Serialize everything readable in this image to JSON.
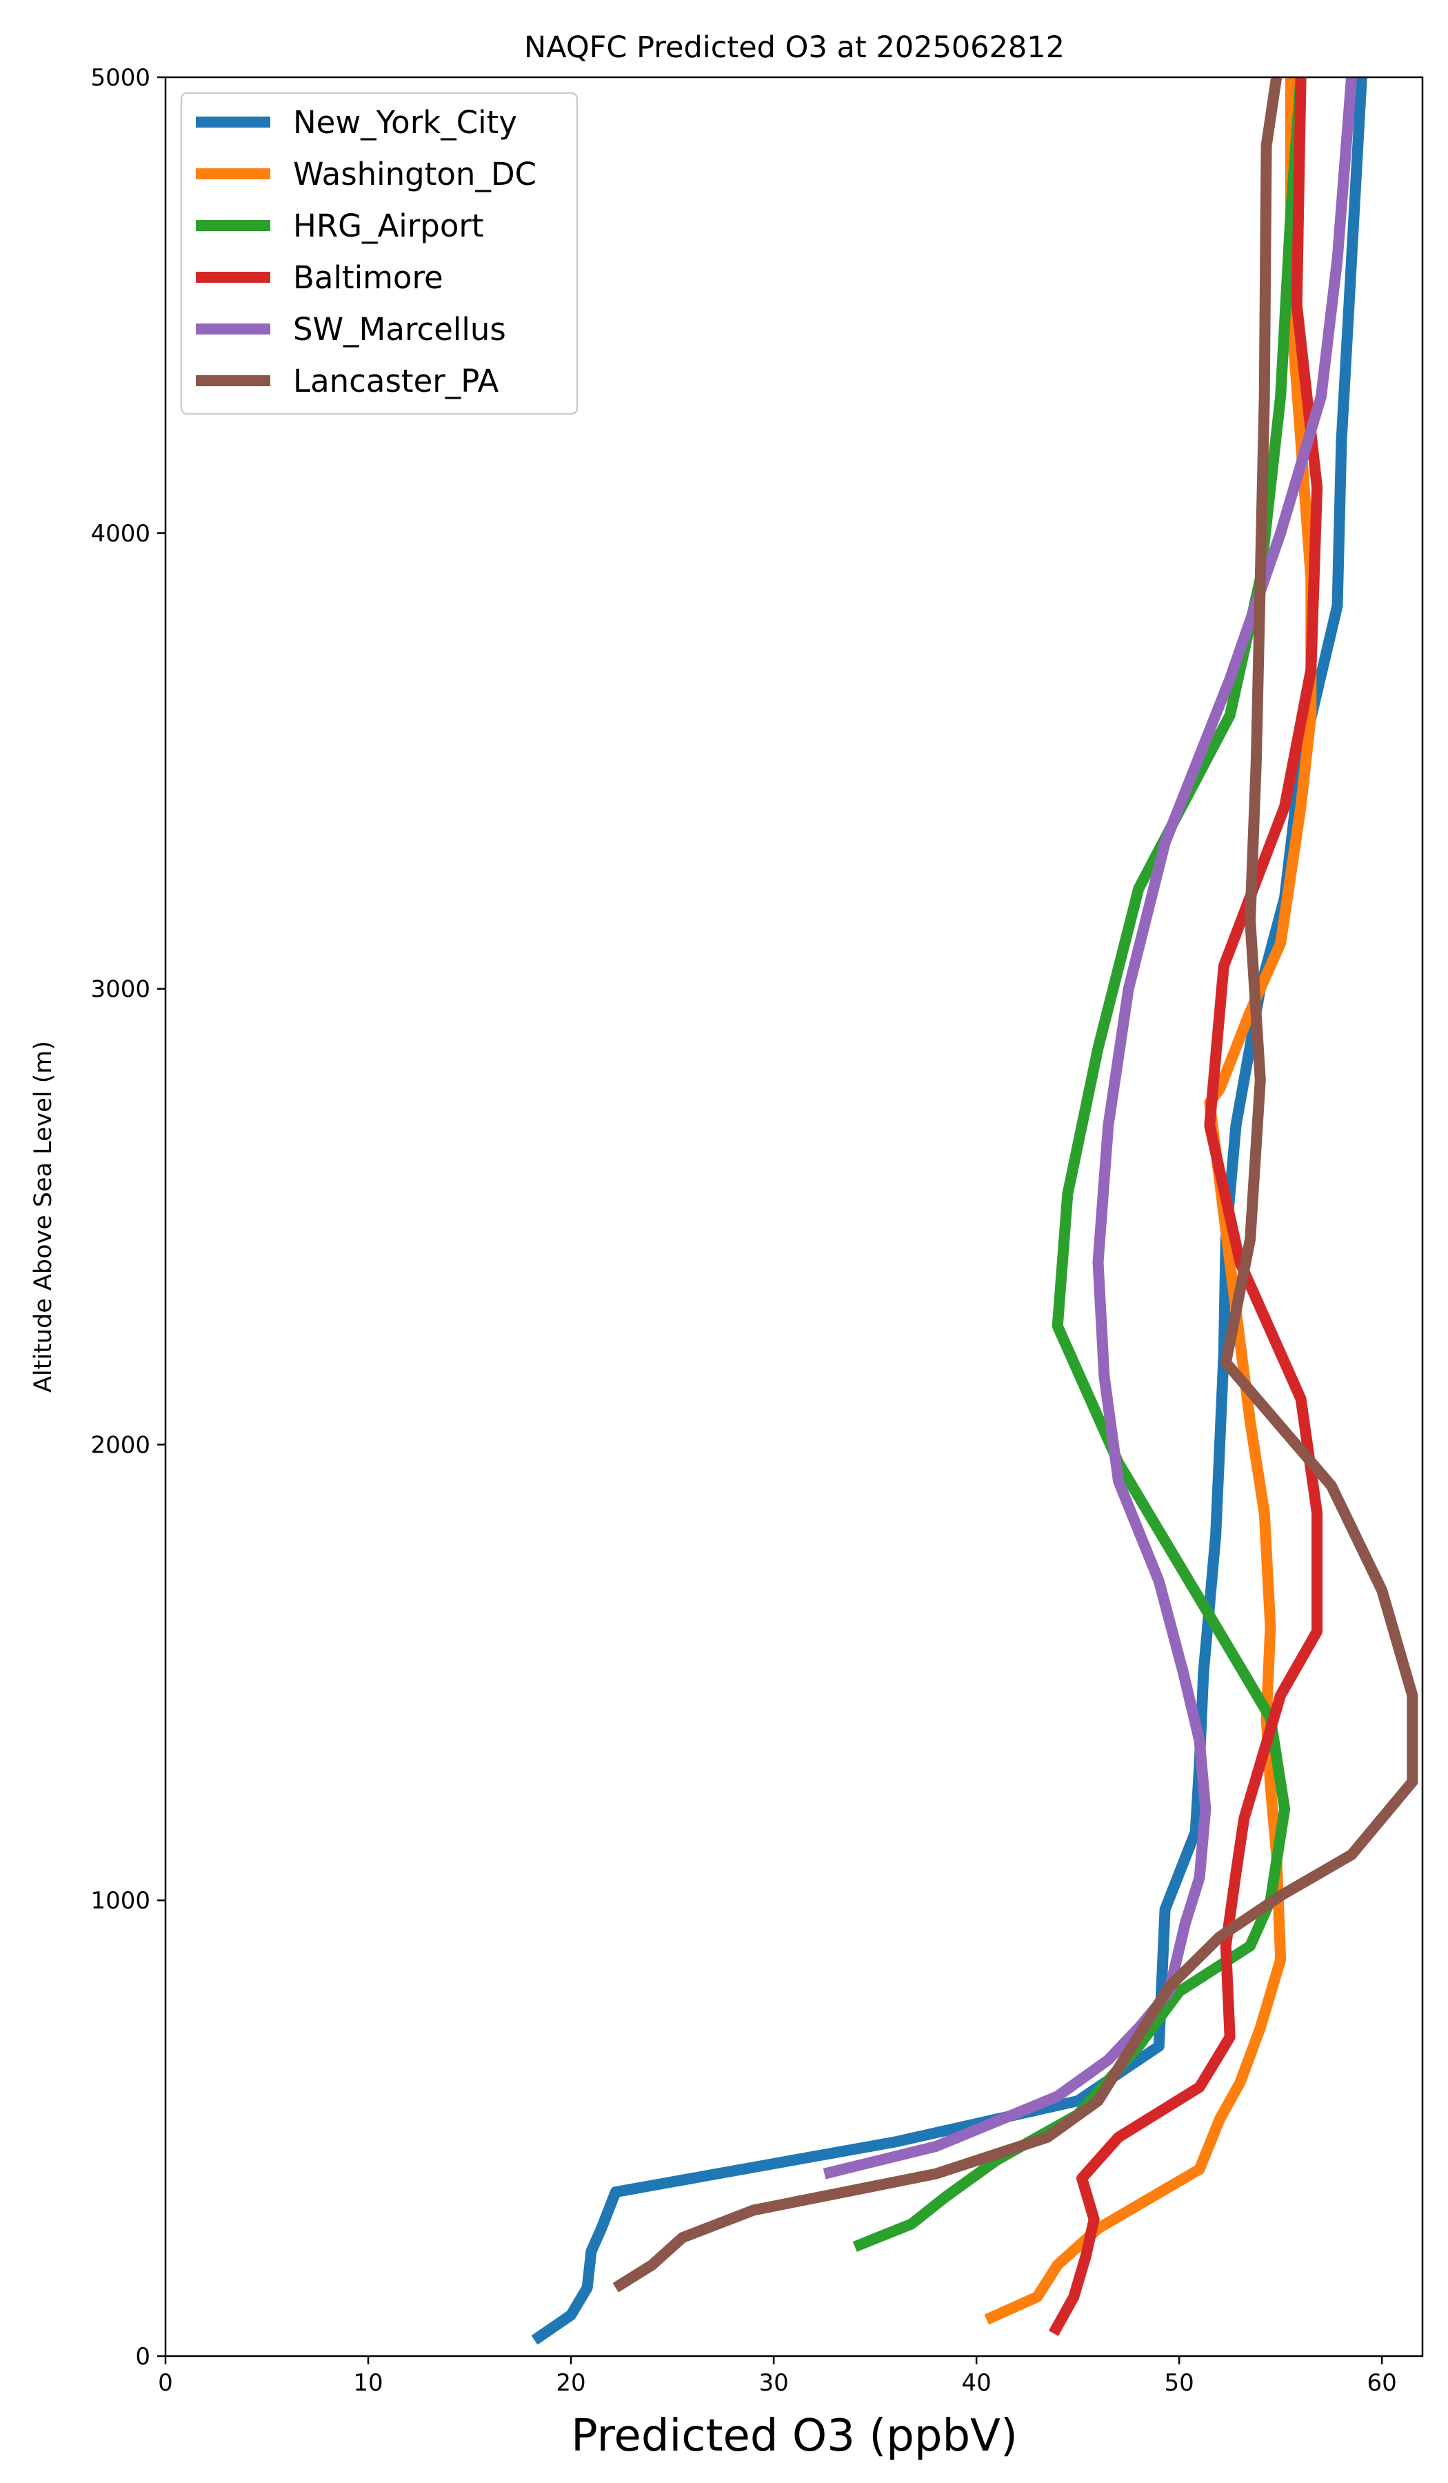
{
  "chart_data": {
    "type": "line",
    "title": "NAQFC Predicted O3 at 2025062812",
    "xlabel": "Predicted O3 (ppbV)",
    "ylabel": "Altitude Above Sea Level (m)",
    "xlim": [
      0,
      62
    ],
    "ylim": [
      0,
      5000
    ],
    "xticks": [
      0,
      10,
      20,
      30,
      40,
      50,
      60
    ],
    "yticks": [
      0,
      1000,
      2000,
      3000,
      4000,
      5000
    ],
    "grid": false,
    "legend_position": "upper-left",
    "series": [
      {
        "name": "New_York_City",
        "color": "#1f77b4",
        "points": [
          [
            18.2,
            35
          ],
          [
            20.0,
            90
          ],
          [
            20.8,
            150
          ],
          [
            21.0,
            230
          ],
          [
            21.5,
            280
          ],
          [
            22.2,
            360
          ],
          [
            36.0,
            470
          ],
          [
            45.0,
            560
          ],
          [
            49.0,
            680
          ],
          [
            49.3,
            980
          ],
          [
            50.8,
            1150
          ],
          [
            51.0,
            1300
          ],
          [
            51.2,
            1500
          ],
          [
            51.5,
            1650
          ],
          [
            51.8,
            1800
          ],
          [
            52.0,
            2000
          ],
          [
            52.2,
            2200
          ],
          [
            52.3,
            2450
          ],
          [
            52.8,
            2700
          ],
          [
            54.0,
            3000
          ],
          [
            55.2,
            3200
          ],
          [
            56.0,
            3500
          ],
          [
            57.8,
            3840
          ],
          [
            58.0,
            4200
          ],
          [
            58.5,
            4600
          ],
          [
            59.0,
            5000
          ]
        ]
      },
      {
        "name": "Washington_DC",
        "color": "#ff7f0e",
        "points": [
          [
            40.5,
            80
          ],
          [
            43.0,
            130
          ],
          [
            44.0,
            200
          ],
          [
            46.0,
            280
          ],
          [
            51.0,
            410
          ],
          [
            52.0,
            520
          ],
          [
            53.0,
            600
          ],
          [
            54.0,
            720
          ],
          [
            55.0,
            870
          ],
          [
            54.8,
            1100
          ],
          [
            54.5,
            1250
          ],
          [
            54.3,
            1400
          ],
          [
            54.5,
            1600
          ],
          [
            54.2,
            1850
          ],
          [
            53.5,
            2050
          ],
          [
            52.5,
            2400
          ],
          [
            51.5,
            2750
          ],
          [
            52.0,
            2780
          ],
          [
            53.5,
            2950
          ],
          [
            55.0,
            3100
          ],
          [
            56.0,
            3400
          ],
          [
            56.5,
            3600
          ],
          [
            56.5,
            3900
          ],
          [
            56.0,
            4200
          ],
          [
            55.5,
            4500
          ],
          [
            55.5,
            5000
          ]
        ]
      },
      {
        "name": "HRG_Airport",
        "color": "#2ca02c",
        "points": [
          [
            34.0,
            240
          ],
          [
            36.8,
            290
          ],
          [
            38.5,
            350
          ],
          [
            41.0,
            430
          ],
          [
            45.0,
            530
          ],
          [
            48.0,
            680
          ],
          [
            50.0,
            800
          ],
          [
            53.5,
            900
          ],
          [
            54.5,
            1000
          ],
          [
            55.2,
            1200
          ],
          [
            54.5,
            1400
          ],
          [
            52.5,
            1550
          ],
          [
            47.0,
            1960
          ],
          [
            44.0,
            2260
          ],
          [
            44.5,
            2550
          ],
          [
            46.0,
            2870
          ],
          [
            48.0,
            3220
          ],
          [
            52.5,
            3600
          ],
          [
            54.0,
            3900
          ],
          [
            55.0,
            4300
          ],
          [
            55.5,
            4700
          ],
          [
            56.0,
            5000
          ]
        ]
      },
      {
        "name": "Baltimore",
        "color": "#d62728",
        "points": [
          [
            43.8,
            50
          ],
          [
            44.8,
            130
          ],
          [
            45.4,
            220
          ],
          [
            45.8,
            300
          ],
          [
            45.2,
            390
          ],
          [
            47.0,
            480
          ],
          [
            51.0,
            590
          ],
          [
            52.5,
            700
          ],
          [
            52.3,
            900
          ],
          [
            52.8,
            1060
          ],
          [
            53.2,
            1180
          ],
          [
            54.0,
            1300
          ],
          [
            55.0,
            1450
          ],
          [
            56.8,
            1590
          ],
          [
            56.8,
            1850
          ],
          [
            56.0,
            2100
          ],
          [
            53.0,
            2400
          ],
          [
            51.5,
            2700
          ],
          [
            52.2,
            3050
          ],
          [
            55.2,
            3400
          ],
          [
            56.5,
            3700
          ],
          [
            56.8,
            4100
          ],
          [
            55.8,
            4500
          ],
          [
            56.0,
            5000
          ]
        ]
      },
      {
        "name": "SW_Marcellus",
        "color": "#9467bd",
        "points": [
          [
            32.5,
            400
          ],
          [
            38.0,
            460
          ],
          [
            44.0,
            570
          ],
          [
            46.5,
            650
          ],
          [
            48.0,
            720
          ],
          [
            49.5,
            800
          ],
          [
            50.3,
            950
          ],
          [
            51.0,
            1050
          ],
          [
            51.3,
            1200
          ],
          [
            51.0,
            1350
          ],
          [
            50.2,
            1500
          ],
          [
            49.0,
            1700
          ],
          [
            47.0,
            1920
          ],
          [
            46.3,
            2150
          ],
          [
            46.0,
            2400
          ],
          [
            46.5,
            2700
          ],
          [
            47.5,
            3000
          ],
          [
            49.3,
            3320
          ],
          [
            52.5,
            3680
          ],
          [
            55.0,
            4000
          ],
          [
            57.0,
            4300
          ],
          [
            57.8,
            4600
          ],
          [
            58.5,
            5000
          ]
        ]
      },
      {
        "name": "Lancaster_PA",
        "color": "#8c564b",
        "points": [
          [
            22.2,
            150
          ],
          [
            24.0,
            200
          ],
          [
            25.5,
            260
          ],
          [
            29.0,
            320
          ],
          [
            38.0,
            400
          ],
          [
            43.5,
            480
          ],
          [
            46.0,
            560
          ],
          [
            49.5,
            810
          ],
          [
            52.0,
            920
          ],
          [
            55.0,
            1010
          ],
          [
            58.5,
            1100
          ],
          [
            61.5,
            1260
          ],
          [
            61.5,
            1450
          ],
          [
            60.0,
            1680
          ],
          [
            57.5,
            1910
          ],
          [
            52.3,
            2180
          ],
          [
            53.5,
            2450
          ],
          [
            54.0,
            2800
          ],
          [
            53.5,
            3150
          ],
          [
            53.8,
            3500
          ],
          [
            54.0,
            3900
          ],
          [
            54.2,
            4300
          ],
          [
            54.3,
            4850
          ],
          [
            54.8,
            5000
          ]
        ]
      }
    ]
  }
}
